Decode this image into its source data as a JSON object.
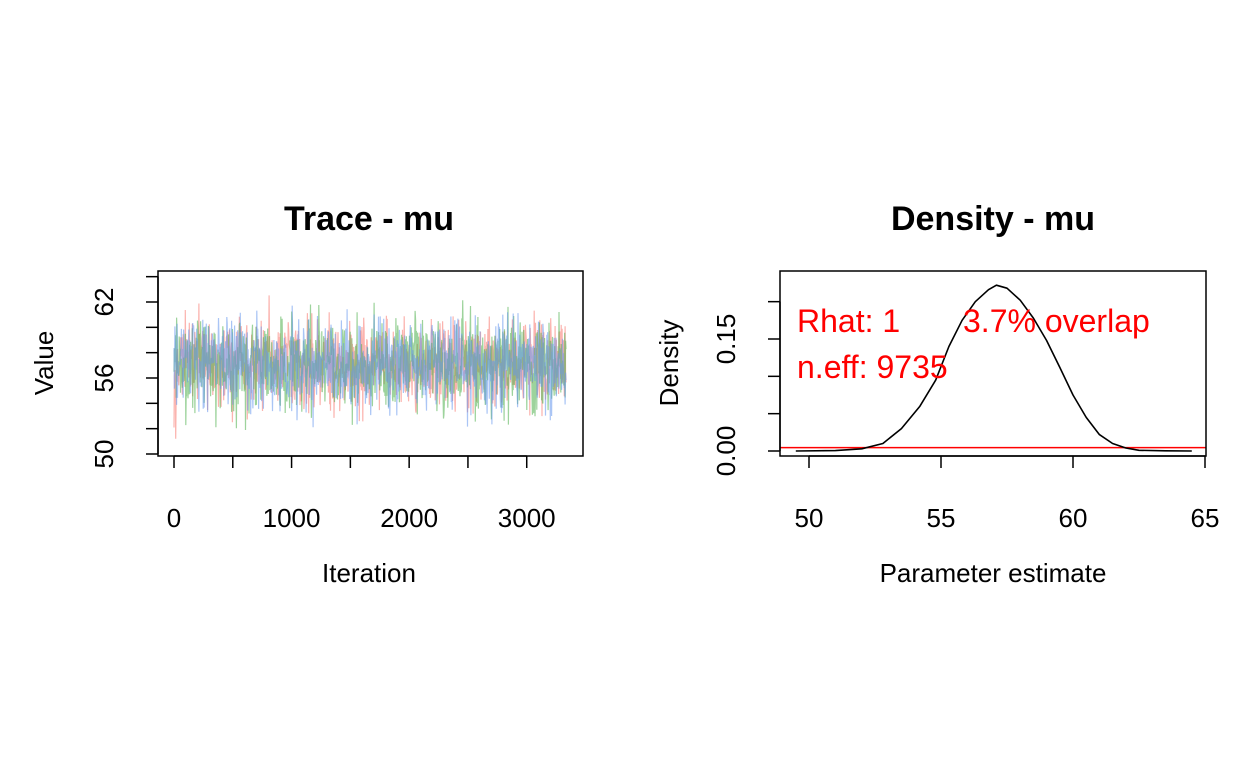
{
  "chart_data": [
    {
      "type": "line",
      "title": "Trace - mu",
      "xlabel": "Iteration",
      "ylabel": "Value",
      "xlim": [
        0,
        3334
      ],
      "ylim": [
        50,
        64
      ],
      "x_ticks": [
        0,
        1000,
        2000,
        3000
      ],
      "x_tick_labels": [
        "0",
        "1000",
        "2000",
        "3000"
      ],
      "y_ticks": [
        50,
        52,
        54,
        56,
        58,
        60,
        62,
        64
      ],
      "y_tick_labels": [
        "50",
        "56",
        "62"
      ],
      "y_labeled_values": [
        50,
        56,
        62
      ],
      "series": [
        {
          "color": "#f8766d",
          "mean": 57.1,
          "sd": 1.8,
          "min": 50.8,
          "max": 63.6
        },
        {
          "color": "#4daf4a",
          "mean": 57.1,
          "sd": 1.8,
          "min": 51.2,
          "max": 63.0
        },
        {
          "color": "#6495ed",
          "mean": 57.1,
          "sd": 1.8,
          "min": 50.3,
          "max": 63.9
        }
      ],
      "n_iterations": 3334,
      "grid": false
    },
    {
      "type": "line",
      "title": "Density - mu",
      "xlabel": "Parameter estimate",
      "ylabel": "Density",
      "xlim": [
        49,
        65
      ],
      "ylim": [
        0,
        0.23
      ],
      "x_ticks": [
        50,
        55,
        60,
        65
      ],
      "x_tick_labels": [
        "50",
        "55",
        "60",
        "65"
      ],
      "y_ticks": [
        0.0,
        0.05,
        0.1,
        0.15,
        0.2
      ],
      "y_tick_labels": [
        "0.00",
        "0.15"
      ],
      "y_labeled_values": [
        0.0,
        0.15
      ],
      "series": [
        {
          "color": "#000000",
          "x": [
            49.5,
            51.0,
            52.0,
            52.8,
            53.5,
            54.2,
            54.8,
            55.3,
            55.8,
            56.3,
            56.8,
            57.1,
            57.5,
            58.0,
            58.5,
            59.0,
            59.5,
            60.0,
            60.5,
            61.0,
            61.5,
            62.0,
            62.5,
            63.5,
            64.5
          ],
          "y": [
            0.0,
            0.0005,
            0.003,
            0.01,
            0.03,
            0.06,
            0.095,
            0.14,
            0.175,
            0.2,
            0.216,
            0.222,
            0.218,
            0.202,
            0.178,
            0.148,
            0.112,
            0.075,
            0.045,
            0.022,
            0.01,
            0.004,
            0.001,
            0.0003,
            0.0
          ]
        }
      ],
      "reference_line": {
        "y": 0.0045,
        "color": "#ff0000"
      },
      "annotations": [
        "Rhat: 1",
        "3.7% overlap",
        "n.eff: 9735"
      ],
      "annotation_color": "#ff0000",
      "grid": false
    }
  ]
}
